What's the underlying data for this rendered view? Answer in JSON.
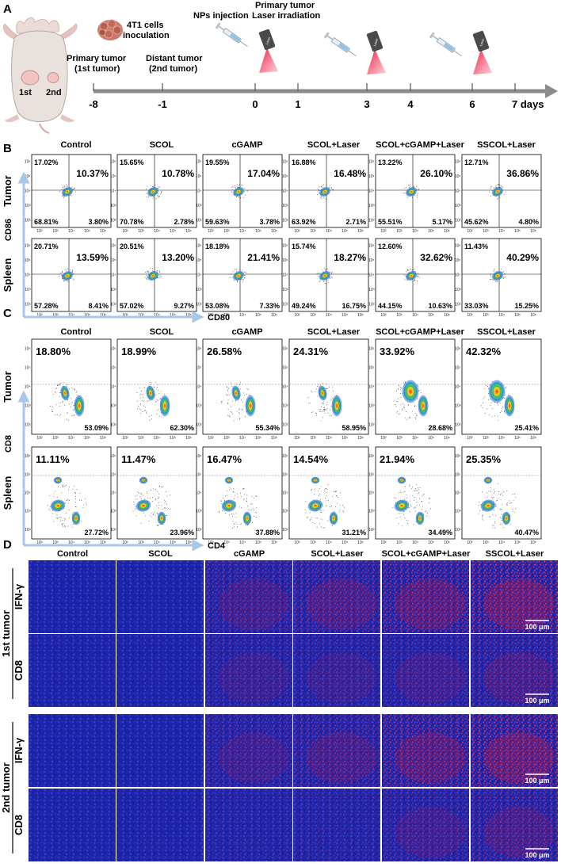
{
  "panel_labels": {
    "a": "A",
    "b": "B",
    "c": "C",
    "d": "D"
  },
  "panel_a": {
    "cells_label_line1": "4T1 cells",
    "cells_label_line2": "inoculation",
    "primary_tumor_line1": "Primary tumor",
    "primary_tumor_line2": "(1st tumor)",
    "distant_tumor_line1": "Distant tumor",
    "distant_tumor_line2": "(2nd tumor)",
    "mouse_primary": "1st",
    "mouse_distant": "2nd",
    "nps_injection": "NPs injection",
    "laser_line1": "Primary tumor",
    "laser_line2": "Laser irradiation",
    "laser_device": "Laser",
    "timeline_ticks": [
      {
        "label": "-8",
        "day": -8
      },
      {
        "label": "-1",
        "day": -1
      },
      {
        "label": "0",
        "day": 0
      },
      {
        "label": "1",
        "day": 1
      },
      {
        "label": "3",
        "day": 3
      },
      {
        "label": "4",
        "day": 4
      },
      {
        "label": "6",
        "day": 6
      },
      {
        "label": "7 days",
        "day": 7
      }
    ]
  },
  "groups": [
    "Control",
    "SCOL",
    "cGAMP",
    "SCOL+Laser",
    "SCOL+cGAMP+Laser",
    "SSCOL+Laser"
  ],
  "panel_b": {
    "y_axis": "CD86",
    "x_axis": "CD80",
    "rows": [
      {
        "label": "Tumor",
        "q_ul": [
          "17.02%",
          "15.65%",
          "19.55%",
          "16.88%",
          "13.22%",
          "12.71%"
        ],
        "q_ur": [
          "10.37%",
          "10.78%",
          "17.04%",
          "16.48%",
          "26.10%",
          "36.86%"
        ],
        "q_ll": [
          "68.81%",
          "70.78%",
          "59.63%",
          "63.92%",
          "55.51%",
          "45.62%"
        ],
        "q_lr": [
          "3.80%",
          "2.78%",
          "3.78%",
          "2.71%",
          "5.17%",
          "4.80%"
        ]
      },
      {
        "label": "Spleen",
        "q_ul": [
          "20.71%",
          "20.51%",
          "18.18%",
          "15.74%",
          "12.60%",
          "11.43%"
        ],
        "q_ur": [
          "13.59%",
          "13.20%",
          "21.41%",
          "18.27%",
          "32.62%",
          "40.29%"
        ],
        "q_ll": [
          "57.28%",
          "57.02%",
          "53.08%",
          "49.24%",
          "44.15%",
          "33.03%"
        ],
        "q_lr": [
          "8.41%",
          "9.27%",
          "7.33%",
          "16.75%",
          "10.63%",
          "15.25%"
        ]
      }
    ]
  },
  "panel_c": {
    "y_axis": "CD8",
    "x_axis": "CD4",
    "rows": [
      {
        "label": "Tumor",
        "cd8": [
          "18.80%",
          "18.99%",
          "26.58%",
          "24.31%",
          "33.92%",
          "42.32%"
        ],
        "cd4": [
          "53.09%",
          "62.30%",
          "55.34%",
          "58.95%",
          "28.68%",
          "25.41%"
        ]
      },
      {
        "label": "Spleen",
        "cd8": [
          "11.11%",
          "11.47%",
          "16.47%",
          "14.54%",
          "21.94%",
          "25.35%"
        ],
        "cd4": [
          "27.72%",
          "23.96%",
          "37.88%",
          "31.21%",
          "34.49%",
          "40.47%"
        ]
      }
    ]
  },
  "panel_d": {
    "blocks": [
      {
        "label": "1st tumor",
        "rows": [
          "IFN-γ",
          "CD8"
        ]
      },
      {
        "label": "2nd tumor",
        "rows": [
          "IFN-γ",
          "CD8"
        ]
      }
    ],
    "scale_bar": "100 μm",
    "red_intensity": [
      [
        0.05,
        0.07,
        0.45,
        0.55,
        0.7,
        0.85
      ],
      [
        0.1,
        0.1,
        0.35,
        0.35,
        0.4,
        0.5
      ],
      [
        0.05,
        0.08,
        0.4,
        0.5,
        0.7,
        0.85
      ],
      [
        0.08,
        0.12,
        0.25,
        0.3,
        0.4,
        0.5
      ]
    ]
  },
  "tick_labels": [
    "10²",
    "10³",
    "10⁴",
    "10⁵",
    "10⁶"
  ],
  "colors": {
    "laser": "#e8163c",
    "arrow": "#8b8b8b",
    "axis_blue": "#a9c6e8",
    "micro_blue": "#1c2bb8",
    "micro_red": "#e02238"
  }
}
